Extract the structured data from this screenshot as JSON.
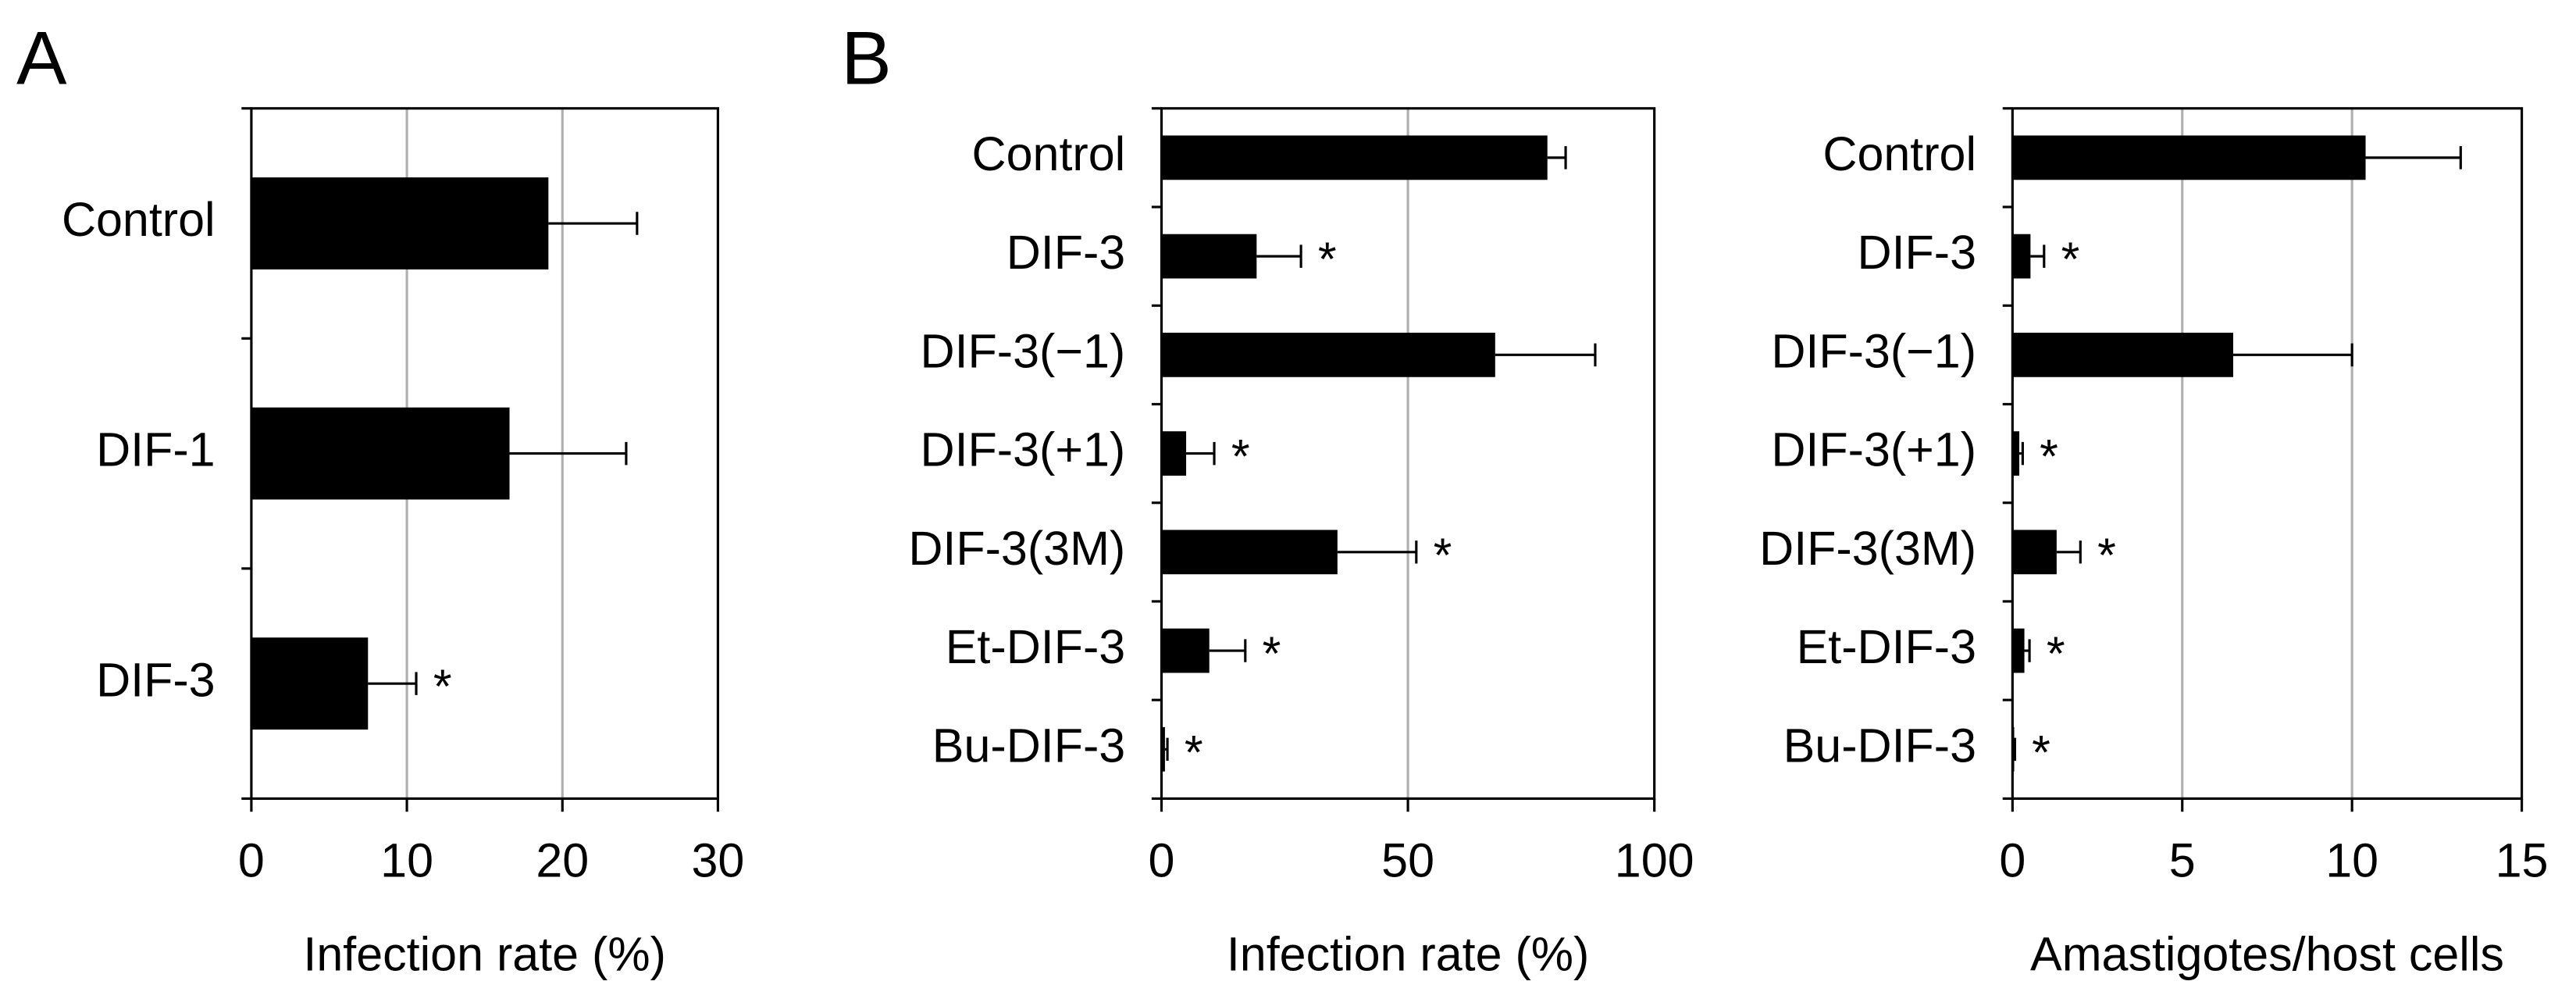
{
  "chart_data": [
    {
      "type": "bar",
      "orientation": "horizontal",
      "panel_label": "A",
      "categories": [
        "Control",
        "DIF-1",
        "DIF-3"
      ],
      "values": [
        19.1,
        16.6,
        7.5
      ],
      "errors": [
        5.7,
        7.5,
        3.1
      ],
      "markers": [
        null,
        null,
        "*"
      ],
      "xlabel": "Infection rate (%)",
      "xlim": [
        0,
        30
      ],
      "xticks": [
        0,
        10,
        20,
        30
      ],
      "grid": true,
      "color": "#000000"
    },
    {
      "type": "bar",
      "orientation": "horizontal",
      "panel_label": "B",
      "categories": [
        "Control",
        "DIF-3",
        "DIF-3(−1)",
        "DIF-3(+1)",
        "DIF-3(3M)",
        "Et-DIF-3",
        "Bu-DIF-3"
      ],
      "values": [
        78.3,
        19.3,
        67.7,
        5,
        35.7,
        9.7,
        0.7
      ],
      "errors": [
        3.7,
        9,
        20.3,
        5.7,
        16,
        7.3,
        0.5
      ],
      "markers": [
        null,
        "*",
        null,
        "*",
        "*",
        "*",
        "*"
      ],
      "xlabel": "Infection rate (%)",
      "xlim": [
        0,
        100
      ],
      "xticks": [
        0,
        50,
        100
      ],
      "grid": true,
      "color": "#000000"
    },
    {
      "type": "bar",
      "orientation": "horizontal",
      "categories": [
        "Control",
        "DIF-3",
        "DIF-3(−1)",
        "DIF-3(+1)",
        "DIF-3(3M)",
        "Et-DIF-3",
        "Bu-DIF-3"
      ],
      "values": [
        10.4,
        0.53,
        6.5,
        0.2,
        1.3,
        0.35,
        0.05
      ],
      "errors": [
        2.8,
        0.4,
        3.5,
        0.1,
        0.7,
        0.15,
        0.02
      ],
      "markers": [
        null,
        "*",
        null,
        "*",
        "*",
        "*",
        "*"
      ],
      "xlabel": "Amastigotes/host cells",
      "xlim": [
        0,
        15
      ],
      "xticks": [
        0,
        5,
        10,
        15
      ],
      "grid": true,
      "color": "#000000"
    }
  ]
}
